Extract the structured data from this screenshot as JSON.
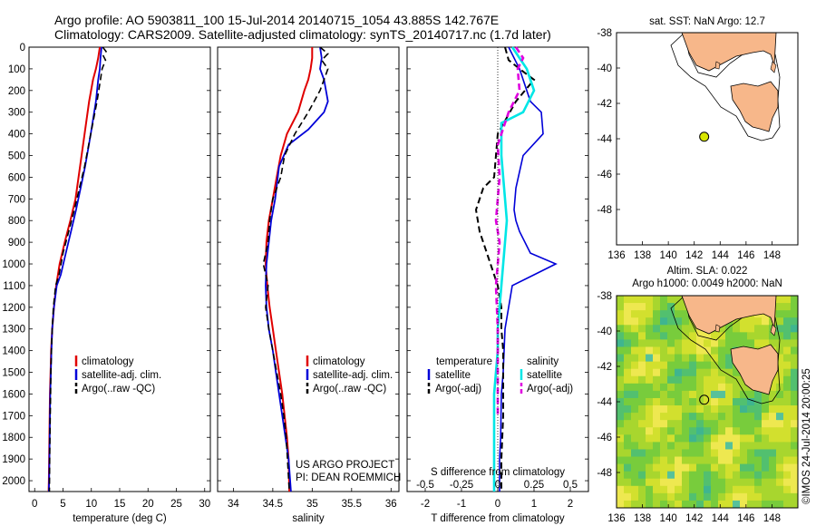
{
  "header": {
    "title_line1": "Argo profile: AO 5903811_100 15-Jul-2014 20140715_1054 43.885S 142.767E",
    "title_line2": "Climatology: CARS2009. Satellite-adjusted climatology: synTS_20140717.nc (1.7d later)"
  },
  "colors": {
    "climatology": "#e00000",
    "satellite": "#0000d8",
    "argo": "#000000",
    "sat_salinity": "#00e6e6",
    "argo_salinity": "#e000e0",
    "land": "#f7b78a",
    "argo_dot": "#d8e600"
  },
  "chart_data": [
    {
      "type": "line",
      "name": "temperature-profile",
      "xlabel": "temperature (deg C)",
      "ylabel": "",
      "xlim": [
        -1,
        31
      ],
      "ylim": [
        2050,
        0
      ],
      "xticks": [
        0,
        5,
        10,
        15,
        20,
        25,
        30
      ],
      "yticks": [
        0,
        100,
        200,
        300,
        400,
        500,
        600,
        700,
        800,
        900,
        1000,
        1100,
        1200,
        1300,
        1400,
        1500,
        1600,
        1700,
        1800,
        1900,
        2000
      ],
      "legend": [
        "climatology",
        "satellite-adj. clim.",
        "Argo(..raw -QC)"
      ],
      "legend_position": "lower-center",
      "series": [
        {
          "name": "climatology",
          "x": [
            11.5,
            11.2,
            10.8,
            10.3,
            9.6,
            8.8,
            8.0,
            7.2,
            6.3,
            5.3,
            4.4,
            3.8,
            3.4,
            3.1,
            2.9,
            2.8,
            2.7,
            2.65,
            2.6,
            2.55,
            2.5,
            2.45
          ],
          "y": [
            0,
            50,
            100,
            150,
            250,
            400,
            550,
            700,
            800,
            900,
            1000,
            1100,
            1200,
            1300,
            1400,
            1500,
            1600,
            1700,
            1800,
            1900,
            2000,
            2050
          ]
        },
        {
          "name": "satellite-adj. clim.",
          "x": [
            11.8,
            11.6,
            11.5,
            11.2,
            10.8,
            9.9,
            8.9,
            8.1,
            7.3,
            6.4,
            5.5,
            4.6,
            3.9,
            3.4,
            3.1,
            2.95,
            2.85,
            2.75,
            2.7,
            2.65,
            2.6,
            2.55,
            2.5
          ],
          "y": [
            0,
            50,
            100,
            150,
            250,
            400,
            550,
            650,
            750,
            850,
            950,
            1050,
            1100,
            1200,
            1300,
            1400,
            1500,
            1600,
            1700,
            1800,
            1900,
            2000,
            2050
          ]
        },
        {
          "name": "Argo(..raw -QC)",
          "x": [
            12.0,
            12.6,
            12.1,
            12.5,
            11.9,
            11.6,
            11.0,
            9.9,
            8.8,
            7.9,
            7.0,
            6.0,
            5.0,
            4.3,
            3.7,
            3.3,
            3.1,
            2.95,
            2.85,
            2.8,
            2.75,
            2.7,
            2.65,
            2.6
          ],
          "y": [
            0,
            20,
            40,
            60,
            100,
            150,
            250,
            400,
            550,
            650,
            750,
            850,
            950,
            1050,
            1100,
            1200,
            1300,
            1400,
            1500,
            1600,
            1700,
            1800,
            1900,
            2050
          ]
        }
      ]
    },
    {
      "type": "line",
      "name": "salinity-profile",
      "xlabel": "salinity",
      "ylabel": "",
      "xlim": [
        33.8,
        36.1
      ],
      "ylim": [
        2050,
        0
      ],
      "xticks": [
        34,
        34.5,
        35,
        35.5,
        36
      ],
      "xticklabels": [
        "34",
        "34.5",
        "35",
        "35.5",
        "36"
      ],
      "legend": [
        "climatology",
        "satellite-adj. clim.",
        "Argo(..raw -QC)"
      ],
      "legend_position": "lower-center",
      "annotations": [
        "US ARGO PROJECT",
        "PI: DEAN ROEMMICH"
      ],
      "series": [
        {
          "name": "climatology",
          "x": [
            35.0,
            35.0,
            34.98,
            34.95,
            34.9,
            34.82,
            34.68,
            34.6,
            34.55,
            34.5,
            34.45,
            34.42,
            34.41,
            34.43,
            34.46,
            34.5,
            34.54,
            34.58,
            34.62,
            34.65,
            34.68,
            34.7,
            34.71
          ],
          "y": [
            0,
            50,
            100,
            150,
            200,
            300,
            400,
            500,
            600,
            700,
            800,
            900,
            1000,
            1100,
            1200,
            1300,
            1400,
            1500,
            1600,
            1700,
            1800,
            1900,
            2050
          ]
        },
        {
          "name": "satellite-adj. clim.",
          "x": [
            35.1,
            35.12,
            35.1,
            35.15,
            35.2,
            35.15,
            34.95,
            34.7,
            34.58,
            34.53,
            34.48,
            34.45,
            34.42,
            34.41,
            34.42,
            34.45,
            34.5,
            34.54,
            34.58,
            34.62,
            34.66,
            34.7,
            34.73
          ],
          "y": [
            0,
            50,
            100,
            150,
            250,
            300,
            380,
            450,
            550,
            700,
            800,
            900,
            1000,
            1100,
            1200,
            1300,
            1400,
            1500,
            1600,
            1700,
            1800,
            1900,
            2050
          ]
        },
        {
          "name": "Argo(..raw -QC)",
          "x": [
            35.1,
            35.2,
            35.12,
            35.2,
            35.1,
            34.95,
            34.78,
            34.65,
            34.6,
            34.5,
            34.46,
            34.44,
            34.38,
            34.44,
            34.41,
            34.45,
            34.5,
            34.55,
            34.6,
            34.64,
            34.67,
            34.71
          ],
          "y": [
            0,
            30,
            60,
            100,
            200,
            300,
            400,
            500,
            600,
            700,
            800,
            900,
            1000,
            1100,
            1200,
            1300,
            1400,
            1500,
            1600,
            1700,
            1800,
            2050
          ]
        }
      ]
    },
    {
      "type": "line",
      "name": "difference-profile",
      "xlabel": "T difference from climatology",
      "xlabel2": "S difference from climatology",
      "xlim": [
        -2.5,
        2.5
      ],
      "ylim": [
        2050,
        0
      ],
      "xticks": [
        -2,
        -1,
        0,
        1,
        2
      ],
      "xticks2": [
        -0.5,
        -0.25,
        0,
        0.25,
        0.5
      ],
      "xticklabels2": [
        "-0.5",
        "-0.25",
        "0",
        "0.25",
        "0.5"
      ],
      "legend_left_title": "temperature",
      "legend_right_title": "salinity",
      "legend": [
        "satellite",
        "Argo(-adj)",
        "satellite",
        "Argo(-adj)"
      ],
      "legend_position": "lower-center",
      "series": [
        {
          "name": "satellite",
          "x": [
            0.3,
            0.6,
            0.7,
            0.9,
            1.2,
            1.25,
            0.7,
            0.5,
            0.45,
            0.5,
            0.6,
            0.9,
            1.6,
            1.0,
            0.4,
            0.3,
            0.2,
            0.15,
            0.1,
            0.08,
            0.05,
            0.05
          ],
          "y": [
            0,
            100,
            150,
            250,
            300,
            400,
            500,
            650,
            750,
            800,
            850,
            950,
            1000,
            1050,
            1100,
            1200,
            1300,
            1500,
            1600,
            1800,
            1900,
            2050
          ]
        },
        {
          "name": "Argo(-adj)",
          "x": [
            0.2,
            0.3,
            0.6,
            1.0,
            0.5,
            0.0,
            -0.05,
            -0.1,
            -0.4,
            -0.6,
            -0.5,
            -0.3,
            -0.2,
            -0.1,
            0.0,
            0.1,
            0.1,
            0.15,
            0.15,
            0.15,
            0.1,
            0.1
          ],
          "y": [
            0,
            60,
            100,
            150,
            250,
            400,
            500,
            600,
            650,
            750,
            850,
            950,
            1000,
            1050,
            1100,
            1200,
            1300,
            1400,
            1500,
            1700,
            1900,
            2050
          ]
        },
        {
          "name": "satellite",
          "x": [
            0.4,
            0.6,
            0.8,
            1.0,
            0.7,
            0.1,
            0.1,
            0.15,
            0.2,
            0.25,
            0.2,
            0.15,
            0.1,
            0.05,
            0.0,
            0.0,
            -0.05,
            -0.1,
            -0.1,
            -0.1,
            -0.1
          ],
          "y": [
            0,
            50,
            100,
            200,
            300,
            350,
            500,
            600,
            700,
            800,
            900,
            1000,
            1100,
            1200,
            1300,
            1400,
            1500,
            1600,
            1700,
            1800,
            2050
          ]
        },
        {
          "name": "Argo(-adj)",
          "x": [
            0.5,
            0.7,
            0.55,
            0.6,
            0.3,
            0.0,
            0.05,
            0.0,
            -0.05,
            0.05,
            0.0,
            -0.05,
            0.0,
            0.0,
            0.0
          ],
          "y": [
            0,
            50,
            100,
            200,
            300,
            450,
            600,
            700,
            800,
            900,
            1000,
            1100,
            1300,
            1500,
            1700
          ]
        }
      ]
    },
    {
      "type": "scatter",
      "name": "sst-map",
      "title": "sat. SST: NaN Argo: 12.7",
      "xlim": [
        136,
        150
      ],
      "ylim": [
        -50,
        -38
      ],
      "xticks": [
        136,
        138,
        140,
        142,
        144,
        146,
        148
      ],
      "yticks": [
        -38,
        -40,
        -42,
        -44,
        -46,
        -48
      ],
      "series": [
        {
          "name": "",
          "x": [
            142.767
          ],
          "y": [
            -43.885
          ]
        }
      ]
    },
    {
      "type": "heatmap",
      "name": "sla-map",
      "title_line1": "Altim. SLA: 0.022",
      "title_line2": "Argo h1000: 0.0049 h2000: NaN",
      "side_label": "©IMOS 24-Jul-2014 20:00:25",
      "xlim": [
        136,
        150
      ],
      "ylim": [
        -50,
        -38
      ],
      "xticks": [
        136,
        138,
        140,
        142,
        144,
        146,
        148
      ],
      "yticks": [
        -38,
        -40,
        -42,
        -44,
        -46,
        -48
      ],
      "series": [
        {
          "name": "",
          "x": [
            142.767
          ],
          "y": [
            -43.885
          ]
        }
      ]
    }
  ]
}
